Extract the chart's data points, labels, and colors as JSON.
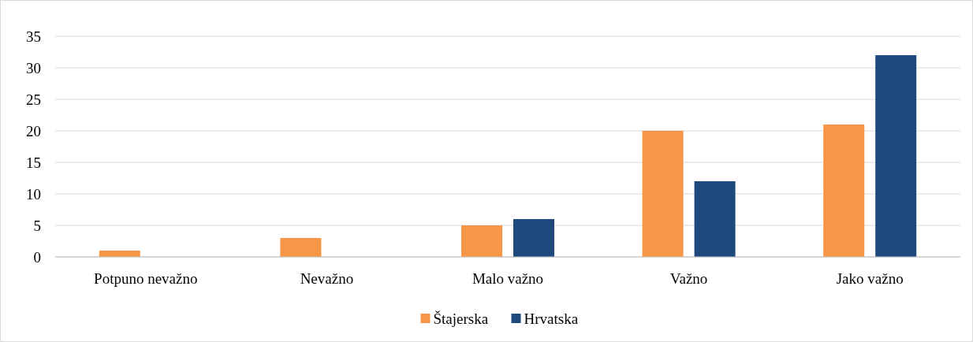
{
  "chart_data": {
    "type": "bar",
    "categories": [
      "Potpuno nevažno",
      "Nevažno",
      "Malo važno",
      "Važno",
      "Jako važno"
    ],
    "series": [
      {
        "name": "Štajerska",
        "color": "#f79646",
        "values": [
          1,
          3,
          5,
          20,
          21
        ]
      },
      {
        "name": "Hrvatska",
        "color": "#1f497d",
        "values": [
          0,
          0,
          6,
          12,
          32
        ]
      }
    ],
    "ylim": [
      0,
      35
    ],
    "yticks": [
      0,
      5,
      10,
      15,
      20,
      25,
      30,
      35
    ],
    "grid": "y",
    "legend": "bottom"
  }
}
